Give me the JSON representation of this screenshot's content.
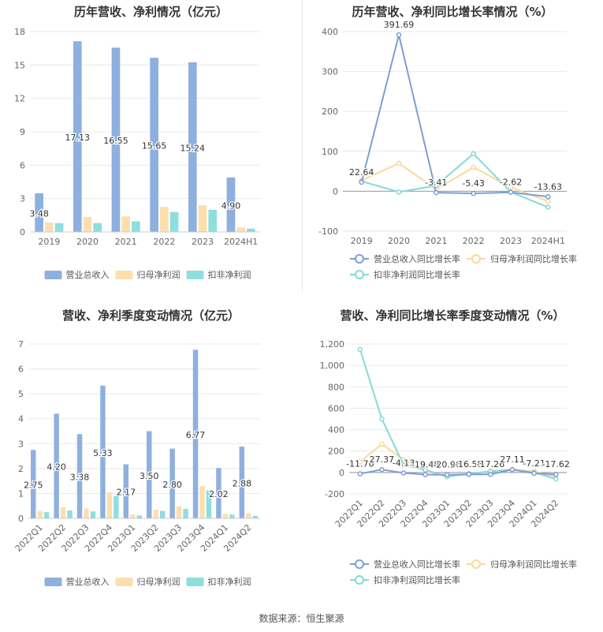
{
  "footer": {
    "source": "数据来源：恒生聚源"
  },
  "colors": {
    "rev": "#8eb0df",
    "net": "#fddfae",
    "ded": "#8fdede",
    "line_rev": "#7d9ed6",
    "line_net": "#fcd89a",
    "line_ded": "#86d9d9",
    "grid": "#e9e9e9",
    "axis_text": "#666666",
    "title": "#333333"
  },
  "legend": {
    "bar": [
      "营业总收入",
      "归母净利润",
      "扣非净利润"
    ],
    "line": [
      "营业总收入同比增长率",
      "归母净利润同比增长率",
      "扣非净利润同比增长率"
    ]
  },
  "chart_data": [
    {
      "id": "c1",
      "type": "bar",
      "title": "历年营收、净利情况（亿元）",
      "categories": [
        "2019",
        "2020",
        "2021",
        "2022",
        "2023",
        "2024H1"
      ],
      "ylim": [
        0,
        18
      ],
      "yticks": [
        0,
        3,
        6,
        9,
        12,
        15,
        18
      ],
      "series": [
        {
          "name": "营业总收入",
          "values": [
            3.48,
            17.13,
            16.55,
            15.65,
            15.24,
            4.9
          ]
        },
        {
          "name": "归母净利润",
          "values": [
            0.85,
            1.35,
            1.4,
            2.25,
            2.4,
            0.4
          ]
        },
        {
          "name": "扣非净利润",
          "values": [
            0.8,
            0.8,
            0.95,
            1.8,
            2.0,
            0.3
          ]
        }
      ],
      "labels": [
        "3.48",
        "17.13",
        "16.55",
        "15.65",
        "15.24",
        "4.90"
      ]
    },
    {
      "id": "c2",
      "type": "line",
      "title": "历年营收、净利同比增长率情况（%）",
      "categories": [
        "2019",
        "2020",
        "2021",
        "2022",
        "2023",
        "2024H1"
      ],
      "ylim": [
        -100,
        400
      ],
      "yticks": [
        -100,
        0,
        100,
        200,
        300,
        400
      ],
      "series": [
        {
          "name": "营业总收入同比增长率",
          "values": [
            22.64,
            391.69,
            -3.41,
            -5.43,
            -2.62,
            -13.63
          ]
        },
        {
          "name": "归母净利润同比增长率",
          "values": [
            27,
            70,
            5,
            60,
            10,
            -25
          ]
        },
        {
          "name": "扣非净利润同比增长率",
          "values": [
            25,
            -2,
            14,
            94,
            -2,
            -40
          ]
        }
      ],
      "labels": [
        "22.64",
        "391.69",
        "-3.41",
        "-5.43",
        "-2.62",
        "-13.63"
      ]
    },
    {
      "id": "c3",
      "type": "bar",
      "title": "营收、净利季度变动情况（亿元）",
      "categories": [
        "2022Q1",
        "2022Q2",
        "2022Q3",
        "2022Q4",
        "2023Q1",
        "2023Q2",
        "2023Q3",
        "2023Q4",
        "2024Q1",
        "2024Q2"
      ],
      "ylim": [
        0,
        7
      ],
      "yticks": [
        0,
        1,
        2,
        3,
        4,
        5,
        6,
        7
      ],
      "series": [
        {
          "name": "营业总收入",
          "values": [
            2.75,
            4.2,
            3.38,
            5.33,
            2.17,
            3.5,
            2.8,
            6.77,
            2.02,
            2.88
          ]
        },
        {
          "name": "归母净利润",
          "values": [
            0.3,
            0.45,
            0.4,
            1.05,
            0.15,
            0.35,
            0.48,
            1.3,
            0.18,
            0.2
          ]
        },
        {
          "name": "扣非净利润",
          "values": [
            0.25,
            0.32,
            0.28,
            0.9,
            0.12,
            0.3,
            0.38,
            1.12,
            0.15,
            0.1
          ]
        }
      ],
      "labels": [
        "2.75",
        "4.20",
        "3.38",
        "5.33",
        "2.17",
        "3.50",
        "2.80",
        "6.77",
        "2.02",
        "2.88"
      ]
    },
    {
      "id": "c4",
      "type": "line",
      "title": "营收、净利同比增长率季度变动情况（%）",
      "categories": [
        "2022Q1",
        "2022Q2",
        "2022Q3",
        "2022Q4",
        "2023Q1",
        "2023Q2",
        "2023Q3",
        "2023Q4",
        "2024Q1",
        "2024Q2"
      ],
      "ylim": [
        -200,
        1200
      ],
      "yticks": [
        -200,
        0,
        200,
        400,
        600,
        800,
        1000,
        1200
      ],
      "ytick_labels": [
        "-200",
        "0",
        "200",
        "400",
        "600",
        "800",
        "1,000",
        "1,200"
      ],
      "series": [
        {
          "name": "营业总收入同比增长率",
          "values": [
            -11.76,
            27.37,
            -4.13,
            -19.48,
            -20.96,
            -16.58,
            -17.26,
            27.11,
            -7.21,
            -17.62
          ]
        },
        {
          "name": "归母净利润同比增长率",
          "values": [
            100,
            265,
            120,
            10,
            -30,
            -20,
            15,
            30,
            10,
            -40
          ]
        },
        {
          "name": "扣非净利润同比增长率",
          "values": [
            1150,
            500,
            70,
            25,
            -40,
            -10,
            10,
            25,
            0,
            -60
          ]
        }
      ],
      "labels": [
        "-11.76",
        "27.37",
        "-4.13",
        "-19.48",
        "-20.96",
        "-16.58",
        "-17.26",
        "27.11",
        "-7.21",
        "-17.62"
      ]
    }
  ]
}
